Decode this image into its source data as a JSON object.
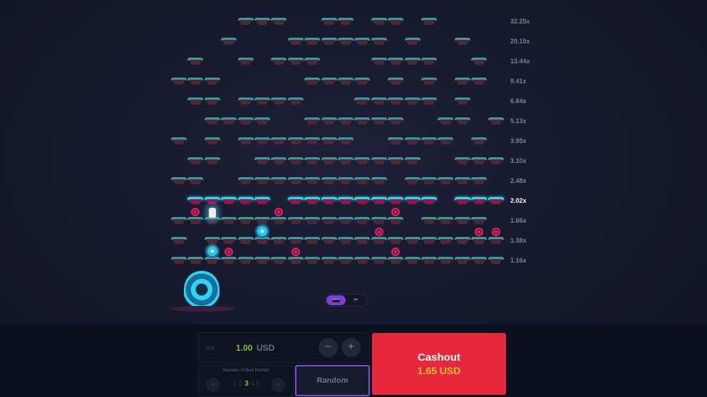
{
  "game": {
    "columns": 20,
    "rows": [
      {
        "multiplier": "32.25x",
        "platforms": [
          4,
          5,
          6,
          9,
          10,
          12,
          13,
          15
        ]
      },
      {
        "multiplier": "20.15x",
        "platforms": [
          3,
          7,
          8,
          9,
          10,
          11,
          12,
          14,
          17
        ]
      },
      {
        "multiplier": "13.44x",
        "platforms": [
          1,
          4,
          6,
          7,
          8,
          12,
          13,
          14,
          15,
          18
        ]
      },
      {
        "multiplier": "9.41x",
        "platforms": [
          0,
          1,
          2,
          8,
          9,
          10,
          11,
          13,
          15,
          17,
          18
        ]
      },
      {
        "multiplier": "6.84x",
        "platforms": [
          1,
          2,
          4,
          5,
          6,
          7,
          11,
          12,
          13,
          14,
          15,
          17
        ]
      },
      {
        "multiplier": "5.13x",
        "platforms": [
          2,
          3,
          4,
          5,
          8,
          9,
          10,
          11,
          12,
          13,
          16,
          17,
          19
        ]
      },
      {
        "multiplier": "3.95x",
        "platforms": [
          0,
          2,
          4,
          5,
          6,
          7,
          8,
          9,
          10,
          13,
          14,
          15,
          16,
          18
        ]
      },
      {
        "multiplier": "3.10x",
        "platforms": [
          1,
          2,
          5,
          6,
          7,
          8,
          9,
          10,
          11,
          12,
          13,
          14,
          17,
          18,
          19
        ]
      },
      {
        "multiplier": "2.48x",
        "platforms": [
          0,
          1,
          4,
          5,
          6,
          7,
          8,
          9,
          10,
          11,
          12,
          14,
          15,
          16,
          17,
          18
        ]
      },
      {
        "multiplier": "2.02x",
        "active": true,
        "platforms": [
          1,
          2,
          3,
          4,
          5,
          7,
          8,
          9,
          10,
          11,
          12,
          13,
          14,
          15,
          17,
          18,
          19
        ]
      },
      {
        "multiplier": "1.66x",
        "platforms": [
          0,
          1,
          2,
          3,
          4,
          5,
          6,
          7,
          8,
          9,
          10,
          11,
          12,
          13,
          15,
          16,
          17,
          18
        ],
        "bad_portals": [
          1,
          6,
          13
        ],
        "character": 2
      },
      {
        "multiplier": "1.38x",
        "platforms": [
          0,
          2,
          3,
          4,
          5,
          6,
          7,
          8,
          9,
          10,
          11,
          12,
          13,
          14,
          15,
          16,
          17,
          18,
          19
        ],
        "bad_portals": [
          12,
          18,
          19
        ],
        "used_portal": 5
      },
      {
        "multiplier": "1.16x",
        "platforms": [
          0,
          1,
          2,
          3,
          4,
          5,
          6,
          7,
          8,
          9,
          10,
          11,
          12,
          13,
          14,
          15,
          16,
          17,
          18,
          19
        ],
        "bad_portals": [
          3,
          7,
          13
        ],
        "used_portal": 2
      }
    ],
    "view_toggle": {
      "selected": 0,
      "options": [
        "platform-view-icon",
        "list-view-icon"
      ]
    }
  },
  "controls": {
    "bet_label": "Bet",
    "bet_value": "1.00",
    "bet_currency": "USD",
    "minus": "−",
    "plus": "+",
    "bad_portals_label": "Number of Bad Portals",
    "prev": "‹",
    "next": "›",
    "portal_counts": [
      "1",
      "2",
      "3",
      "4",
      "5"
    ],
    "portal_selected": "3",
    "random_label": "Random",
    "cashout_label": "Cashout",
    "cashout_amount": "1.65",
    "cashout_currency": "USD"
  },
  "colors": {
    "cashout": "#e6283c",
    "accent": "#7b4ed8",
    "bet_value": "#7fbf3a",
    "cashout_amount": "#ffc12b"
  }
}
